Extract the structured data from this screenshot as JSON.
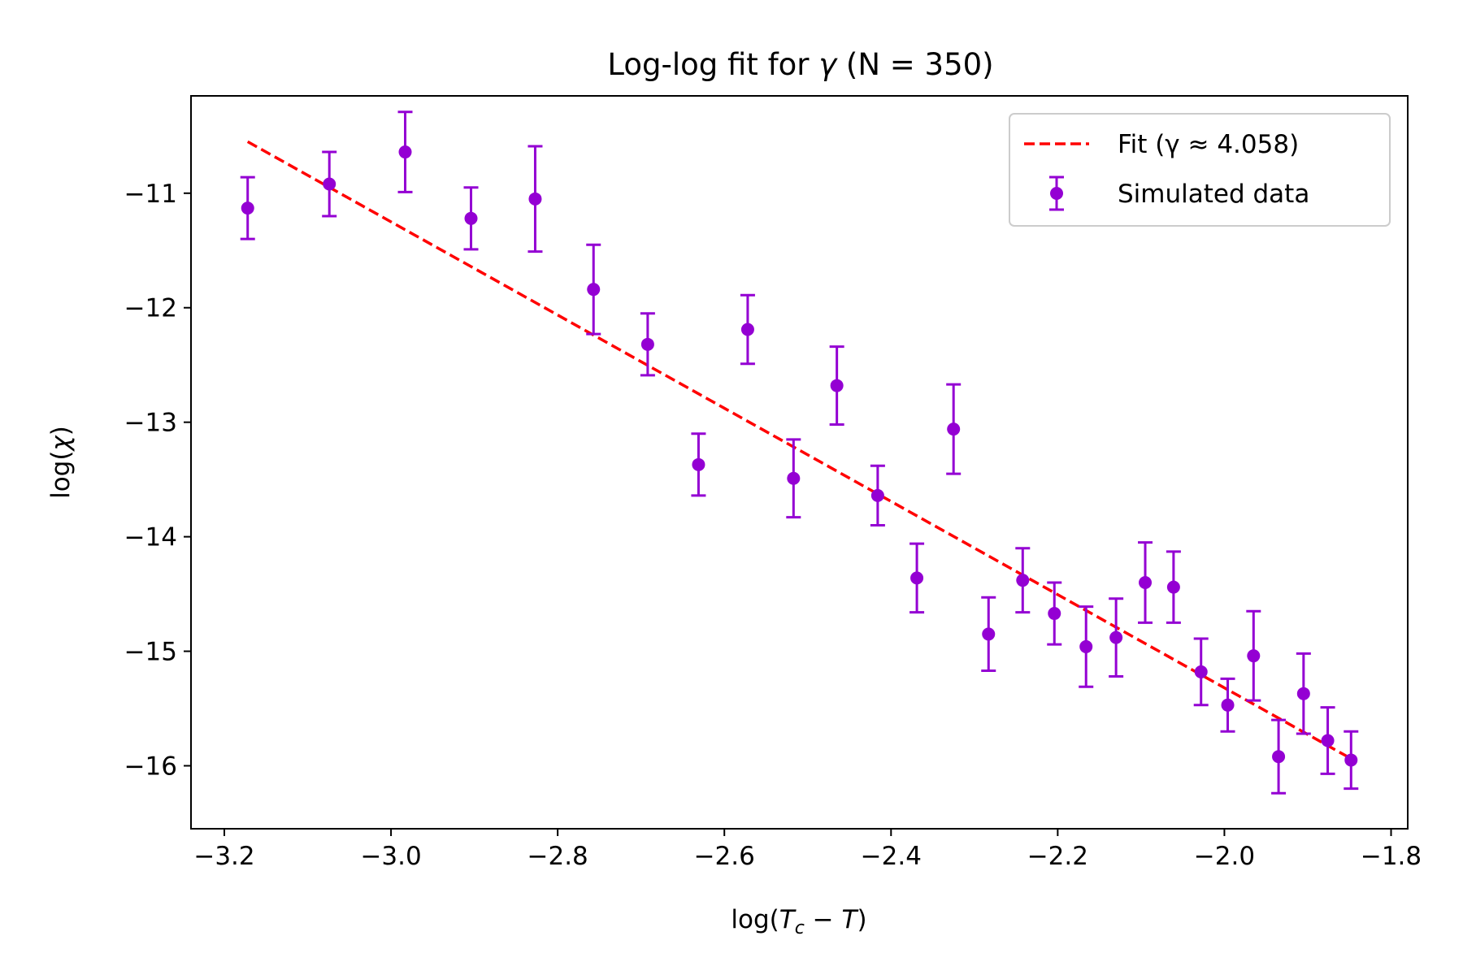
{
  "chart_data": {
    "type": "scatter",
    "title_prefix": "Log-log fit for ",
    "title_symbol": "γ",
    "title_suffix": " (N = 350)",
    "xlabel_prefix": "log(",
    "xlabel_var1": "T",
    "xlabel_sub": "c",
    "xlabel_minus": " − ",
    "xlabel_var2": "T",
    "xlabel_suffix": ")",
    "ylabel_prefix": "log(",
    "ylabel_symbol": "χ",
    "ylabel_suffix": ")",
    "xlim": [
      -3.24,
      -1.78
    ],
    "ylim": [
      -16.55,
      -10.15
    ],
    "xticks": [
      -3.2,
      -3.0,
      -2.8,
      -2.6,
      -2.4,
      -2.2,
      -2.0,
      -1.8
    ],
    "xtick_labels": [
      "−3.2",
      "−3.0",
      "−2.8",
      "−2.6",
      "−2.4",
      "−2.2",
      "−2.0",
      "−1.8"
    ],
    "yticks": [
      -11,
      -12,
      -13,
      -14,
      -15,
      -16
    ],
    "ytick_labels": [
      "−11",
      "−12",
      "−13",
      "−14",
      "−15",
      "−16"
    ],
    "grid": false,
    "legend_position": "top-right",
    "series": [
      {
        "name": "Fit (γ ≈ 4.058)",
        "kind": "line",
        "style": "dashed",
        "color": "#ff0000",
        "x": [
          -3.172,
          -1.845
        ],
        "y": [
          -10.55,
          -15.95
        ]
      },
      {
        "name": "Simulated data",
        "kind": "errorbar",
        "color": "#9400d3",
        "points": [
          {
            "x": -3.172,
            "y": -11.13,
            "err": 0.27
          },
          {
            "x": -3.074,
            "y": -10.92,
            "err": 0.28
          },
          {
            "x": -2.983,
            "y": -10.64,
            "err": 0.35
          },
          {
            "x": -2.904,
            "y": -11.22,
            "err": 0.27
          },
          {
            "x": -2.827,
            "y": -11.05,
            "err": 0.46
          },
          {
            "x": -2.757,
            "y": -11.84,
            "err": 0.39
          },
          {
            "x": -2.692,
            "y": -12.32,
            "err": 0.27
          },
          {
            "x": -2.631,
            "y": -13.37,
            "err": 0.27
          },
          {
            "x": -2.572,
            "y": -12.19,
            "err": 0.3
          },
          {
            "x": -2.517,
            "y": -13.49,
            "err": 0.34
          },
          {
            "x": -2.465,
            "y": -12.68,
            "err": 0.34
          },
          {
            "x": -2.416,
            "y": -13.64,
            "err": 0.26
          },
          {
            "x": -2.369,
            "y": -14.36,
            "err": 0.3
          },
          {
            "x": -2.325,
            "y": -13.06,
            "err": 0.39
          },
          {
            "x": -2.283,
            "y": -14.85,
            "err": 0.32
          },
          {
            "x": -2.242,
            "y": -14.38,
            "err": 0.28
          },
          {
            "x": -2.204,
            "y": -14.67,
            "err": 0.27
          },
          {
            "x": -2.166,
            "y": -14.96,
            "err": 0.35
          },
          {
            "x": -2.13,
            "y": -14.88,
            "err": 0.34
          },
          {
            "x": -2.095,
            "y": -14.4,
            "err": 0.35
          },
          {
            "x": -2.061,
            "y": -14.44,
            "err": 0.31
          },
          {
            "x": -2.028,
            "y": -15.18,
            "err": 0.29
          },
          {
            "x": -1.996,
            "y": -15.47,
            "err": 0.23
          },
          {
            "x": -1.965,
            "y": -15.04,
            "err": 0.39
          },
          {
            "x": -1.935,
            "y": -15.92,
            "err": 0.32
          },
          {
            "x": -1.905,
            "y": -15.37,
            "err": 0.35
          },
          {
            "x": -1.876,
            "y": -15.78,
            "err": 0.29
          },
          {
            "x": -1.848,
            "y": -15.95,
            "err": 0.25
          }
        ]
      }
    ]
  }
}
